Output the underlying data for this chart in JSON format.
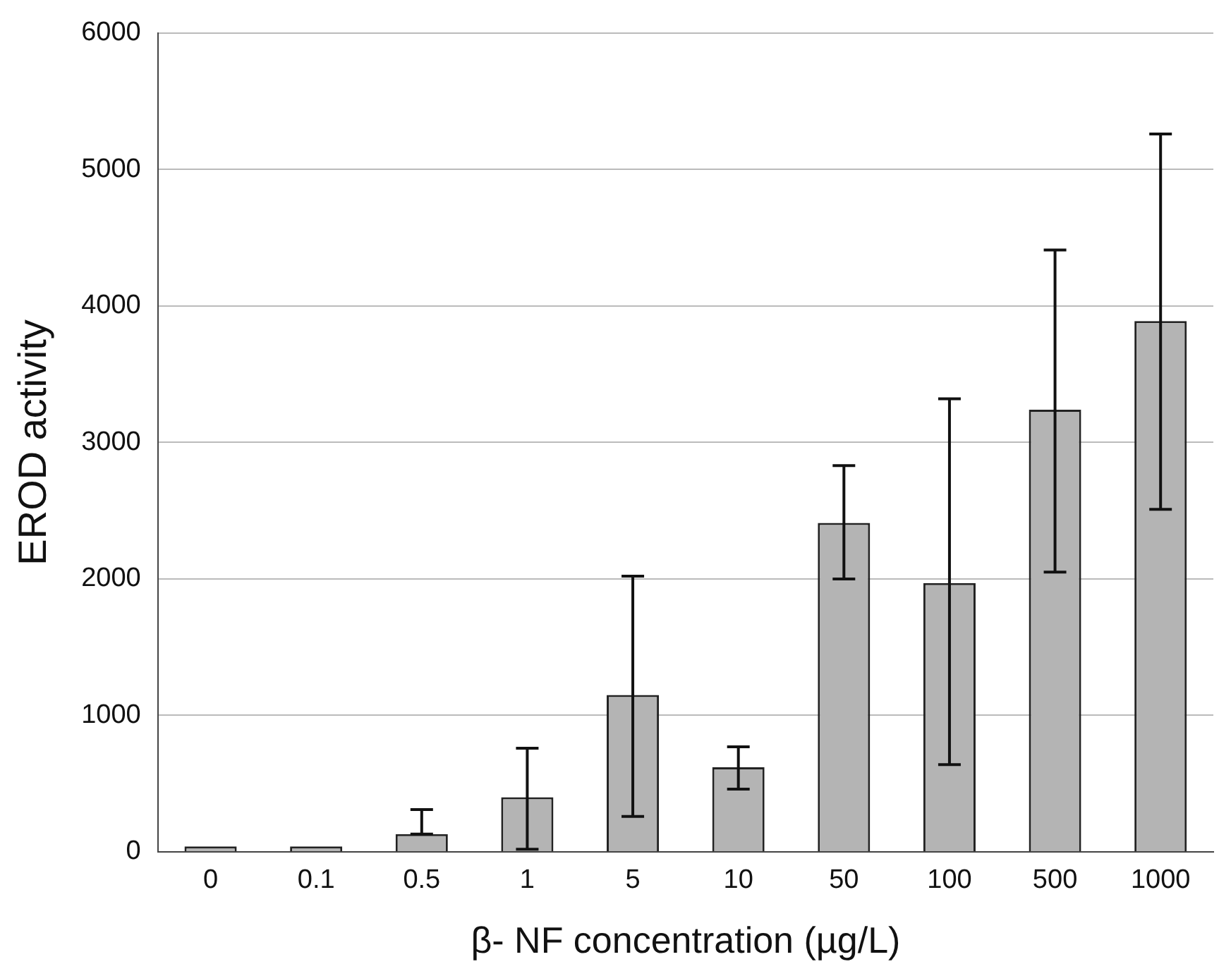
{
  "chart_data": {
    "type": "bar",
    "xlabel": "β- NF concentration (µg/L)",
    "ylabel": "EROD activity",
    "categories": [
      "0",
      "0.1",
      "0.5",
      "1",
      "5",
      "10",
      "50",
      "100",
      "500",
      "1000"
    ],
    "values": [
      40,
      40,
      130,
      400,
      1150,
      620,
      2410,
      1970,
      3240,
      3890
    ],
    "errors": [
      null,
      null,
      [
        130,
        310
      ],
      [
        20,
        760
      ],
      [
        260,
        2020
      ],
      [
        460,
        770
      ],
      [
        2000,
        2830
      ],
      [
        640,
        3320
      ],
      [
        2050,
        4410
      ],
      [
        2510,
        5260
      ]
    ],
    "color": "#b4b4b4",
    "ylim": [
      0,
      6000
    ],
    "yticks": [
      0,
      1000,
      2000,
      3000,
      4000,
      5000,
      6000
    ],
    "grid": "y",
    "legend": false
  }
}
